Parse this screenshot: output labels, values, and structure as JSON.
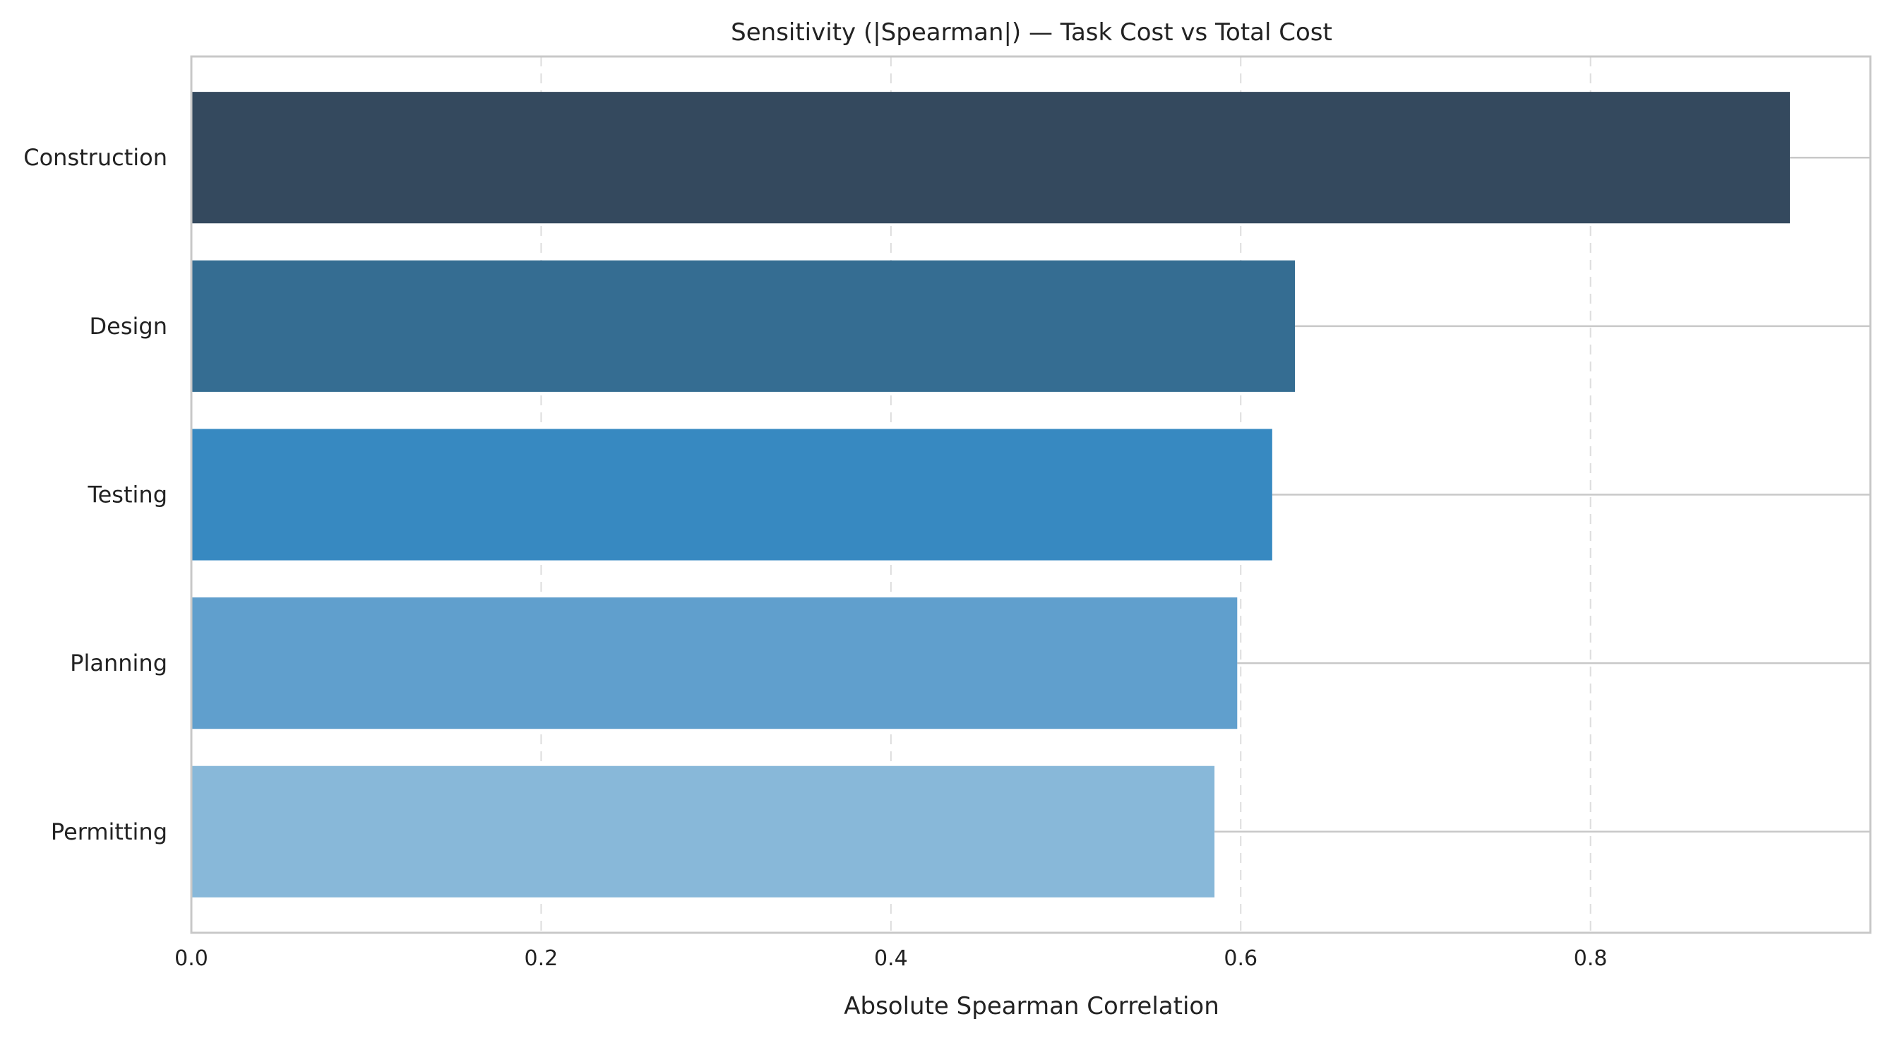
{
  "chart_data": {
    "type": "bar",
    "orientation": "horizontal",
    "title": "Sensitivity (|Spearman|) — Task Cost vs Total Cost",
    "xlabel": "Absolute Spearman Correlation",
    "ylabel": "",
    "xlim": [
      0,
      0.96
    ],
    "x_ticks": [
      0.0,
      0.2,
      0.4,
      0.6,
      0.8
    ],
    "x_tick_labels": [
      "0.0",
      "0.2",
      "0.4",
      "0.6",
      "0.8"
    ],
    "grid": "x-dashed",
    "categories": [
      "Construction",
      "Design",
      "Testing",
      "Planning",
      "Permitting"
    ],
    "values": [
      0.914,
      0.631,
      0.618,
      0.598,
      0.585
    ],
    "colors": [
      "#34495e",
      "#356d92",
      "#3789c1",
      "#609fcd",
      "#88b8d9"
    ]
  }
}
